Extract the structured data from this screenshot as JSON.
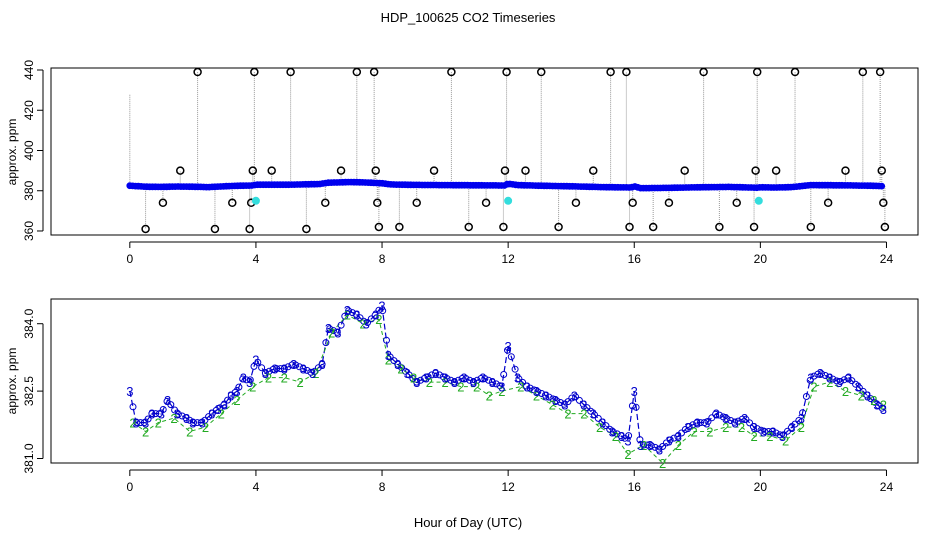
{
  "figure": {
    "title": "HDP_100625  CO2 Timeseries",
    "xlabel": "Hour of Day (UTC)"
  },
  "colors": {
    "dots": "#0000ee",
    "dots_alt": "#33dddd",
    "outlier_circles": "#000000",
    "drop_lines": "#999999",
    "series3": "#0000cc",
    "series2": "#22aa22",
    "line": "#0000cc"
  },
  "chart_data": [
    {
      "type": "scatter",
      "title": "",
      "xlabel": "",
      "ylabel": "approx. ppm",
      "xlim": [
        -2.5,
        25
      ],
      "ylim": [
        358,
        441
      ],
      "xticks": [
        0,
        4,
        8,
        12,
        16,
        20,
        24
      ],
      "yticks": [
        360,
        380,
        400,
        420,
        440
      ],
      "baseline": [
        [
          0,
          382.5
        ],
        [
          0.5,
          382.0
        ],
        [
          1,
          381.9
        ],
        [
          1.5,
          382.1
        ],
        [
          2,
          382.0
        ],
        [
          2.5,
          381.8
        ],
        [
          3,
          382.2
        ],
        [
          3.5,
          382.5
        ],
        [
          3.9,
          382.6
        ],
        [
          4,
          383.0
        ],
        [
          5,
          383.0
        ],
        [
          6,
          383.3
        ],
        [
          6.3,
          384.0
        ],
        [
          7,
          384.3
        ],
        [
          7.5,
          384.1
        ],
        [
          8,
          383.7
        ],
        [
          8.3,
          383.1
        ],
        [
          9,
          382.9
        ],
        [
          10,
          382.8
        ],
        [
          11,
          382.7
        ],
        [
          11.9,
          382.6
        ],
        [
          12,
          383.5
        ],
        [
          12.3,
          382.8
        ],
        [
          13,
          382.5
        ],
        [
          14,
          382.2
        ],
        [
          15,
          381.8
        ],
        [
          15.9,
          381.6
        ],
        [
          16,
          382.2
        ],
        [
          16.2,
          381.3
        ],
        [
          17,
          381.4
        ],
        [
          18,
          381.7
        ],
        [
          19,
          381.9
        ],
        [
          19.9,
          381.5
        ],
        [
          20,
          381.7
        ],
        [
          20.5,
          381.6
        ],
        [
          21,
          381.8
        ],
        [
          21.6,
          382.8
        ],
        [
          22.5,
          382.7
        ],
        [
          23,
          382.6
        ],
        [
          23.5,
          382.5
        ],
        [
          23.9,
          382.3
        ]
      ],
      "outliers": [
        [
          0.5,
          361
        ],
        [
          1.05,
          374
        ],
        [
          1.6,
          390
        ],
        [
          2.15,
          439
        ],
        [
          2.7,
          361
        ],
        [
          3.25,
          374
        ],
        [
          3.8,
          361
        ],
        [
          3.85,
          374
        ],
        [
          3.9,
          390
        ],
        [
          3.95,
          439
        ],
        [
          4.5,
          390
        ],
        [
          5.1,
          439
        ],
        [
          5.6,
          361
        ],
        [
          6.2,
          374
        ],
        [
          6.7,
          390
        ],
        [
          7.2,
          439
        ],
        [
          7.75,
          439
        ],
        [
          7.8,
          390
        ],
        [
          7.85,
          374
        ],
        [
          7.9,
          362
        ],
        [
          8.55,
          362
        ],
        [
          9.1,
          374
        ],
        [
          9.65,
          390
        ],
        [
          10.2,
          439
        ],
        [
          10.75,
          362
        ],
        [
          11.3,
          374
        ],
        [
          11.85,
          362
        ],
        [
          11.9,
          390
        ],
        [
          11.95,
          439
        ],
        [
          12.55,
          390
        ],
        [
          13.05,
          439
        ],
        [
          13.6,
          362
        ],
        [
          14.15,
          374
        ],
        [
          14.7,
          390
        ],
        [
          15.25,
          439
        ],
        [
          15.75,
          439
        ],
        [
          15.85,
          362
        ],
        [
          15.95,
          374
        ],
        [
          16.6,
          362
        ],
        [
          17.1,
          374
        ],
        [
          17.6,
          390
        ],
        [
          18.2,
          439
        ],
        [
          18.7,
          362
        ],
        [
          19.25,
          374
        ],
        [
          19.8,
          362
        ],
        [
          19.85,
          390
        ],
        [
          19.9,
          439
        ],
        [
          20.5,
          390
        ],
        [
          21.1,
          439
        ],
        [
          21.6,
          362
        ],
        [
          22.15,
          374
        ],
        [
          22.7,
          390
        ],
        [
          23.25,
          439
        ],
        [
          23.8,
          439
        ],
        [
          23.85,
          390
        ],
        [
          23.9,
          374
        ],
        [
          23.95,
          362
        ]
      ],
      "cyan_points": [
        [
          4.0,
          375
        ],
        [
          12.0,
          375
        ],
        [
          19.95,
          375
        ]
      ]
    },
    {
      "type": "line",
      "title": "",
      "xlabel": "Hour of Day (UTC)",
      "ylabel": "approx. ppm",
      "xlim": [
        -2.5,
        25
      ],
      "ylim": [
        380.9,
        384.55
      ],
      "xticks": [
        0,
        4,
        8,
        12,
        16,
        20,
        24
      ],
      "yticks": [
        381.0,
        382.5,
        384.0
      ],
      "ytick_labels": [
        "381.0",
        "382.5",
        "384.0"
      ],
      "series": [
        {
          "name": "3",
          "values": [
            [
              0,
              382.5
            ],
            [
              0.2,
              381.8
            ],
            [
              0.5,
              381.8
            ],
            [
              0.7,
              382.0
            ],
            [
              1,
              382.0
            ],
            [
              1.2,
              382.3
            ],
            [
              1.5,
              382.0
            ],
            [
              1.8,
              381.9
            ],
            [
              2.0,
              381.8
            ],
            [
              2.3,
              381.8
            ],
            [
              2.6,
              382.0
            ],
            [
              2.8,
              382.1
            ],
            [
              3.0,
              382.2
            ],
            [
              3.2,
              382.4
            ],
            [
              3.4,
              382.5
            ],
            [
              3.6,
              382.8
            ],
            [
              3.8,
              382.7
            ],
            [
              4.0,
              383.2
            ],
            [
              4.3,
              382.9
            ],
            [
              4.6,
              383.0
            ],
            [
              4.9,
              383.0
            ],
            [
              5.2,
              383.1
            ],
            [
              5.5,
              383.0
            ],
            [
              5.8,
              382.9
            ],
            [
              6.1,
              383.1
            ],
            [
              6.3,
              383.9
            ],
            [
              6.6,
              383.8
            ],
            [
              6.9,
              384.3
            ],
            [
              7.2,
              384.2
            ],
            [
              7.5,
              384.0
            ],
            [
              7.8,
              384.2
            ],
            [
              8.0,
              384.4
            ],
            [
              8.2,
              383.3
            ],
            [
              8.5,
              383.1
            ],
            [
              8.8,
              382.9
            ],
            [
              9.1,
              382.7
            ],
            [
              9.4,
              382.8
            ],
            [
              9.7,
              382.9
            ],
            [
              10.0,
              382.8
            ],
            [
              10.3,
              382.7
            ],
            [
              10.6,
              382.8
            ],
            [
              10.9,
              382.7
            ],
            [
              11.2,
              382.8
            ],
            [
              11.5,
              382.7
            ],
            [
              11.8,
              382.6
            ],
            [
              12.0,
              383.5
            ],
            [
              12.3,
              382.8
            ],
            [
              12.6,
              382.6
            ],
            [
              12.9,
              382.5
            ],
            [
              13.2,
              382.4
            ],
            [
              13.5,
              382.3
            ],
            [
              13.8,
              382.2
            ],
            [
              14.1,
              382.4
            ],
            [
              14.4,
              382.2
            ],
            [
              14.7,
              382.0
            ],
            [
              15.0,
              381.8
            ],
            [
              15.3,
              381.6
            ],
            [
              15.6,
              381.5
            ],
            [
              15.8,
              381.4
            ],
            [
              16.0,
              382.5
            ],
            [
              16.2,
              381.3
            ],
            [
              16.5,
              381.3
            ],
            [
              16.8,
              381.2
            ],
            [
              17.1,
              381.4
            ],
            [
              17.4,
              381.5
            ],
            [
              17.7,
              381.7
            ],
            [
              18.0,
              381.8
            ],
            [
              18.3,
              381.8
            ],
            [
              18.6,
              382.0
            ],
            [
              18.9,
              381.9
            ],
            [
              19.2,
              381.8
            ],
            [
              19.5,
              381.9
            ],
            [
              19.8,
              381.7
            ],
            [
              20.1,
              381.6
            ],
            [
              20.4,
              381.6
            ],
            [
              20.7,
              381.5
            ],
            [
              21.0,
              381.7
            ],
            [
              21.3,
              381.9
            ],
            [
              21.6,
              382.8
            ],
            [
              21.9,
              382.9
            ],
            [
              22.2,
              382.8
            ],
            [
              22.5,
              382.7
            ],
            [
              22.8,
              382.8
            ],
            [
              23.1,
              382.6
            ],
            [
              23.4,
              382.4
            ],
            [
              23.7,
              382.2
            ],
            [
              23.9,
              382.1
            ]
          ]
        },
        {
          "name": "2",
          "values": [
            [
              0.1,
              381.8
            ],
            [
              0.5,
              381.6
            ],
            [
              0.9,
              381.8
            ],
            [
              1.4,
              381.9
            ],
            [
              1.9,
              381.6
            ],
            [
              2.4,
              381.7
            ],
            [
              2.9,
              382.0
            ],
            [
              3.4,
              382.3
            ],
            [
              3.9,
              382.6
            ],
            [
              4.4,
              382.8
            ],
            [
              4.9,
              382.8
            ],
            [
              5.4,
              382.7
            ],
            [
              5.9,
              382.9
            ],
            [
              6.4,
              383.8
            ],
            [
              6.9,
              384.2
            ],
            [
              7.4,
              384.0
            ],
            [
              7.9,
              384.1
            ],
            [
              8.2,
              383.2
            ],
            [
              8.6,
              383.0
            ],
            [
              9.0,
              382.8
            ],
            [
              9.5,
              382.7
            ],
            [
              10.0,
              382.7
            ],
            [
              10.5,
              382.6
            ],
            [
              11.0,
              382.6
            ],
            [
              11.4,
              382.4
            ],
            [
              11.8,
              382.5
            ],
            [
              12.4,
              382.6
            ],
            [
              12.9,
              382.4
            ],
            [
              13.4,
              382.2
            ],
            [
              13.9,
              382.0
            ],
            [
              14.4,
              382.0
            ],
            [
              14.9,
              381.7
            ],
            [
              15.4,
              381.5
            ],
            [
              15.8,
              381.1
            ],
            [
              16.3,
              381.3
            ],
            [
              16.9,
              380.9
            ],
            [
              17.4,
              381.3
            ],
            [
              17.9,
              381.6
            ],
            [
              18.4,
              381.6
            ],
            [
              18.9,
              381.7
            ],
            [
              19.4,
              381.7
            ],
            [
              19.8,
              381.5
            ],
            [
              20.3,
              381.5
            ],
            [
              20.8,
              381.4
            ],
            [
              21.3,
              381.7
            ],
            [
              21.7,
              382.6
            ],
            [
              22.2,
              382.7
            ],
            [
              22.7,
              382.5
            ],
            [
              23.2,
              382.4
            ],
            [
              23.6,
              382.3
            ],
            [
              23.9,
              382.2
            ]
          ]
        }
      ]
    }
  ]
}
